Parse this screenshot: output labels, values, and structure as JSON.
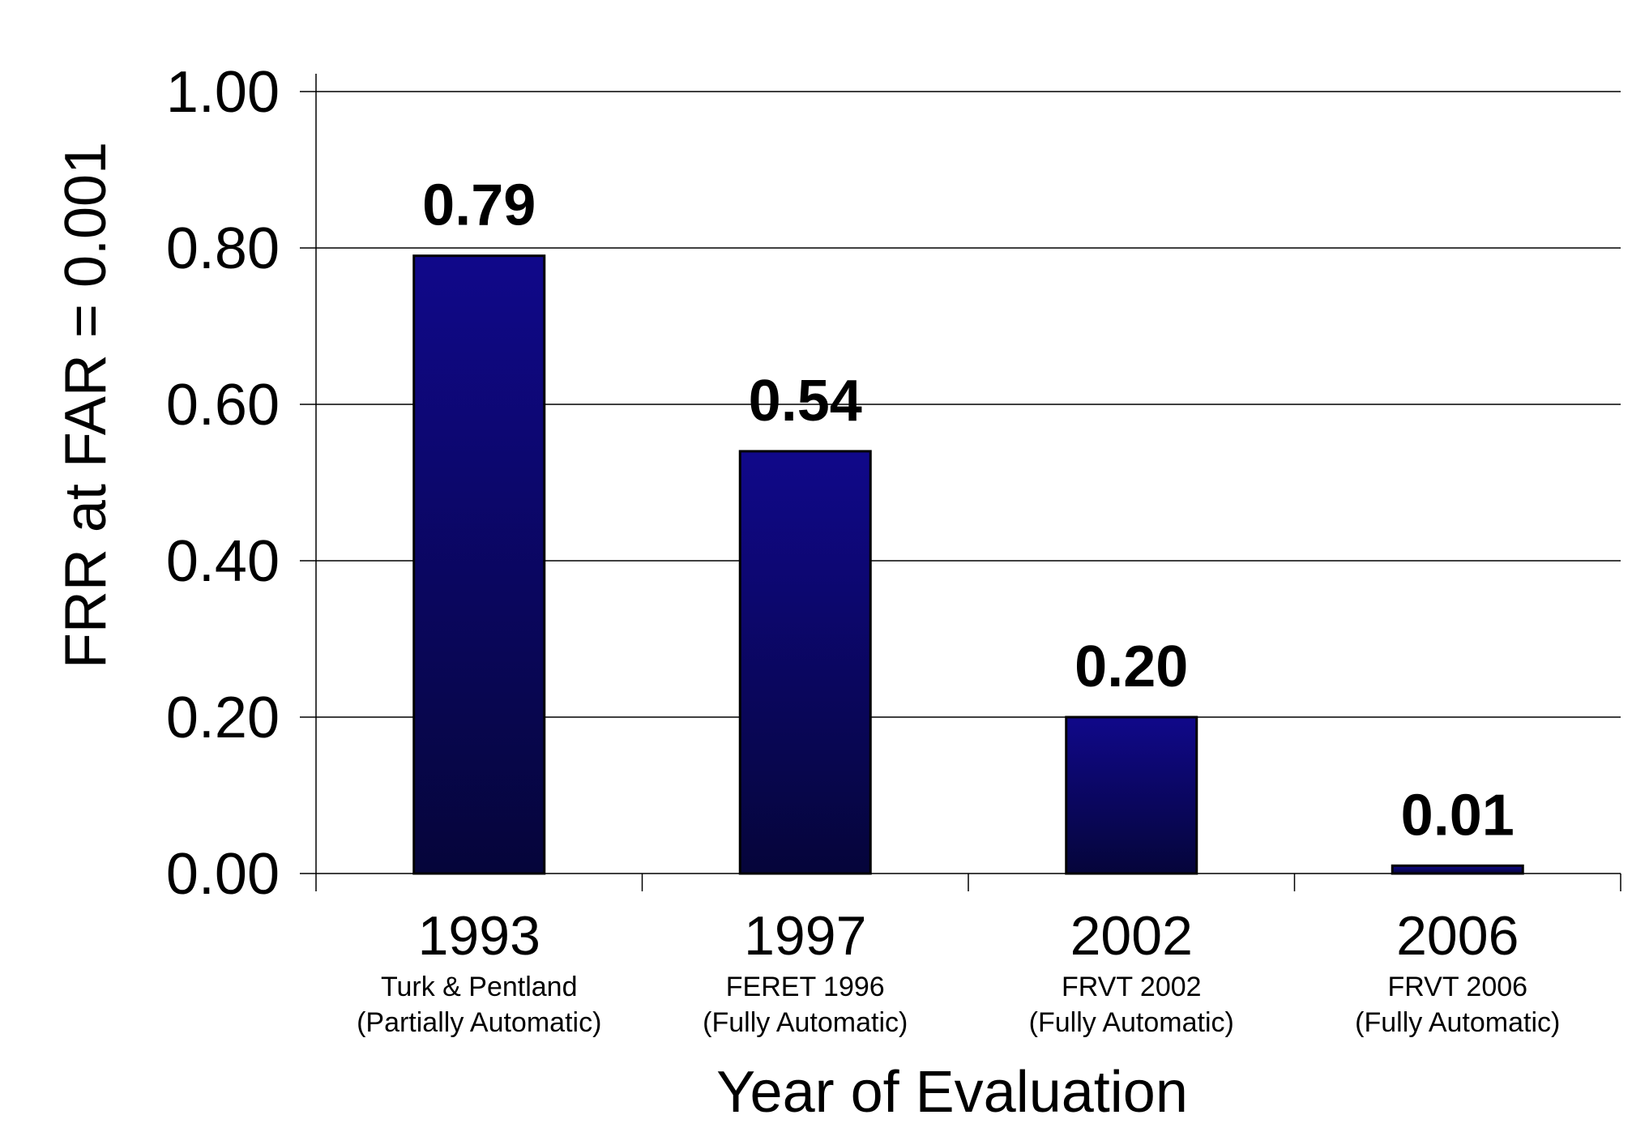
{
  "chart_data": {
    "type": "bar",
    "title": "",
    "xlabel": "Year of Evaluation",
    "ylabel": "FRR at FAR = 0.001",
    "ylim": [
      0,
      1
    ],
    "y_ticks": [
      "0.00",
      "0.20",
      "0.40",
      "0.60",
      "0.80",
      "1.00"
    ],
    "grid": true,
    "legend": "none",
    "bar_color_top": "#10088a",
    "bar_color_bottom": "#05053a",
    "categories": [
      "1993",
      "1997",
      "2002",
      "2006"
    ],
    "category_sublabels": [
      [
        "Turk & Pentland",
        "(Partially Automatic)"
      ],
      [
        "FERET 1996",
        "(Fully Automatic)"
      ],
      [
        "FRVT 2002",
        "(Fully Automatic)"
      ],
      [
        "FRVT 2006",
        "(Fully Automatic)"
      ]
    ],
    "values": [
      0.79,
      0.54,
      0.2,
      0.01
    ],
    "data_labels": [
      "0.79",
      "0.54",
      "0.20",
      "0.01"
    ]
  }
}
